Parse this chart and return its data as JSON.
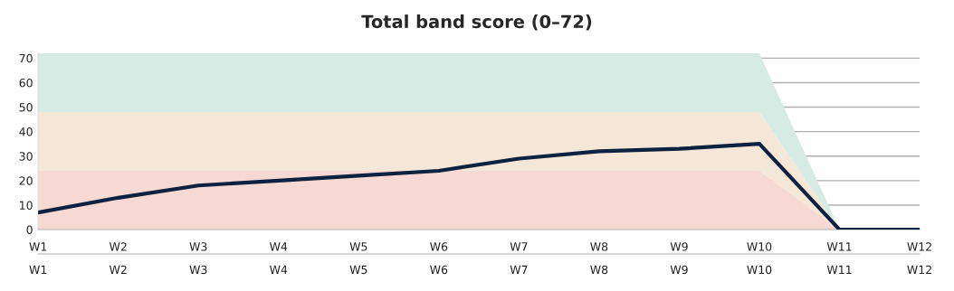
{
  "chart_data": {
    "type": "area",
    "title": "Total band score (0–72)",
    "stacked": true,
    "grid": "y",
    "categories": [
      "W1",
      "W2",
      "W3",
      "W4",
      "W5",
      "W6",
      "W7",
      "W8",
      "W9",
      "W10",
      "W11",
      "W12"
    ],
    "series": [
      {
        "color": "#f5d9d2",
        "values": [
          24,
          24,
          24,
          24,
          24,
          24,
          24,
          24,
          24,
          24,
          0,
          0
        ]
      },
      {
        "color": "#f5e7d7",
        "values": [
          24,
          24,
          24,
          24,
          24,
          24,
          24,
          24,
          24,
          24,
          0,
          0
        ]
      },
      {
        "color": "#d5ebe4",
        "values": [
          24,
          24,
          24,
          24,
          24,
          24,
          24,
          24,
          24,
          24,
          0,
          0
        ]
      },
      {
        "type": "line",
        "color": "#0d2240",
        "values": [
          7,
          13,
          18,
          20,
          22,
          24,
          29,
          32,
          33,
          35,
          0,
          0
        ]
      }
    ],
    "ylim": [
      0,
      72
    ],
    "yticks": [
      0,
      10,
      20,
      30,
      40,
      50,
      60,
      70
    ]
  }
}
